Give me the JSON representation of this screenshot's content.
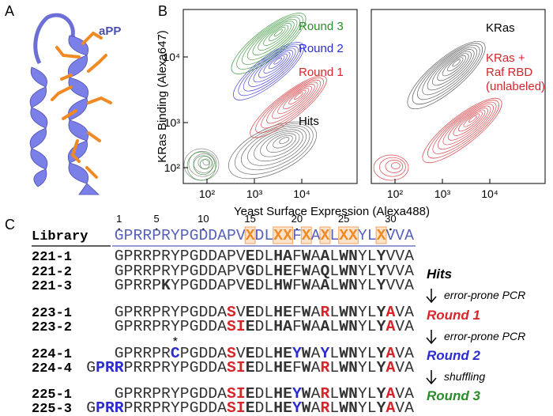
{
  "panel_a": {
    "label": "A",
    "protein": "aPP"
  },
  "panel_b": {
    "label": "B",
    "y_axis_label": "KRas Binding (Alexa647)",
    "x_axis_label": "Yeast Surface Expression (Alexa488)",
    "left_plot": {
      "yticks": [
        "10⁴",
        "10³",
        "10²"
      ],
      "xticks": [
        "10²",
        "10³",
        "10⁴"
      ],
      "annotations": [
        {
          "lines": [
            "Round 3"
          ],
          "color": "#2a8c2a"
        },
        {
          "lines": [
            "Round 2"
          ],
          "color": "#2b2bd0"
        },
        {
          "lines": [
            "Round 1"
          ],
          "color": "#d7262b"
        },
        {
          "lines": [
            "Hits"
          ],
          "color": "#000000"
        }
      ]
    },
    "right_plot": {
      "xticks": [
        "10²",
        "10³",
        "10⁴"
      ],
      "annotations": [
        {
          "lines": [
            "KRas"
          ],
          "color": "#000000"
        },
        {
          "lines": [
            "KRas +",
            "Raf RBD",
            "(unlabeled)"
          ],
          "color": "#d7262b"
        }
      ]
    }
  },
  "panel_c": {
    "label": "C",
    "positions": [
      1,
      5,
      10,
      15,
      20,
      25,
      30
    ],
    "library": {
      "name": "Library",
      "segments": [
        {
          "t": "GPRRPRYPGDDAPV",
          "c": "#5762b8"
        },
        {
          "t": "X",
          "b": true,
          "c": "#f08a24",
          "box": true
        },
        {
          "t": "DL",
          "c": "#5762b8"
        },
        {
          "t": "XX",
          "b": true,
          "c": "#f08a24",
          "box": true
        },
        {
          "t": "F",
          "c": "#5762b8"
        },
        {
          "t": "X",
          "b": true,
          "c": "#f08a24",
          "box": true
        },
        {
          "t": "A",
          "c": "#5762b8"
        },
        {
          "t": "X",
          "b": true,
          "c": "#f08a24",
          "box": true
        },
        {
          "t": "L",
          "c": "#5762b8"
        },
        {
          "t": "XX",
          "b": true,
          "c": "#f08a24",
          "box": true
        },
        {
          "t": "YL",
          "c": "#5762b8"
        },
        {
          "t": "X",
          "b": true,
          "c": "#f08a24",
          "box": true
        },
        {
          "t": "VVA",
          "c": "#5762b8"
        }
      ]
    },
    "rows": [
      {
        "name": "221-1",
        "segments": [
          {
            "t": "GPRRPRYPGDDAPV"
          },
          {
            "t": "E",
            "b": true
          },
          {
            "t": "DL"
          },
          {
            "t": "HA",
            "b": true
          },
          {
            "t": "F"
          },
          {
            "t": "W",
            "b": true
          },
          {
            "t": "A"
          },
          {
            "t": "A",
            "b": true
          },
          {
            "t": "L"
          },
          {
            "t": "WN",
            "b": true
          },
          {
            "t": "YL"
          },
          {
            "t": "Y",
            "b": true
          },
          {
            "t": "VVA"
          }
        ]
      },
      {
        "name": "221-2",
        "segments": [
          {
            "t": "GPRRPRYPGDDAPV"
          },
          {
            "t": "G",
            "b": true
          },
          {
            "t": "DL"
          },
          {
            "t": "HE",
            "b": true
          },
          {
            "t": "F"
          },
          {
            "t": "W",
            "b": true
          },
          {
            "t": "A"
          },
          {
            "t": "Q",
            "b": true
          },
          {
            "t": "L"
          },
          {
            "t": "WN",
            "b": true
          },
          {
            "t": "YL"
          },
          {
            "t": "Y",
            "b": true
          },
          {
            "t": "VVA"
          }
        ]
      },
      {
        "name": "221-3",
        "segments": [
          {
            "t": "GPRRP"
          },
          {
            "t": "K",
            "b": true
          },
          {
            "t": "YPGDDAPV"
          },
          {
            "t": "E",
            "b": true
          },
          {
            "t": "DL"
          },
          {
            "t": "HW",
            "b": true
          },
          {
            "t": "F"
          },
          {
            "t": "W",
            "b": true
          },
          {
            "t": "A"
          },
          {
            "t": "A",
            "b": true
          },
          {
            "t": "L"
          },
          {
            "t": "WN",
            "b": true
          },
          {
            "t": "YL"
          },
          {
            "t": "Y",
            "b": true
          },
          {
            "t": "VVA"
          }
        ]
      },
      {
        "name": "223-1",
        "segments": [
          {
            "t": "GPRRPRYPGDDA"
          },
          {
            "t": "S",
            "b": true,
            "c": "#d7262b"
          },
          {
            "t": "V"
          },
          {
            "t": "E",
            "b": true
          },
          {
            "t": "DL"
          },
          {
            "t": "HE",
            "b": true
          },
          {
            "t": "F"
          },
          {
            "t": "W",
            "b": true
          },
          {
            "t": "A"
          },
          {
            "t": "R",
            "b": true,
            "c": "#d7262b"
          },
          {
            "t": "L"
          },
          {
            "t": "WN",
            "b": true
          },
          {
            "t": "YL"
          },
          {
            "t": "Y",
            "b": true
          },
          {
            "t": "A",
            "b": true,
            "c": "#d7262b"
          },
          {
            "t": "VA"
          }
        ]
      },
      {
        "name": "223-2",
        "segments": [
          {
            "t": "GPRRPRYPGDDA"
          },
          {
            "t": "SI",
            "b": true,
            "c": "#d7262b"
          },
          {
            "t": "E",
            "b": true
          },
          {
            "t": "DL"
          },
          {
            "t": "HA",
            "b": true
          },
          {
            "t": "F"
          },
          {
            "t": "W",
            "b": true
          },
          {
            "t": "A"
          },
          {
            "t": "A",
            "b": true
          },
          {
            "t": "L"
          },
          {
            "t": "WN",
            "b": true
          },
          {
            "t": "YL"
          },
          {
            "t": "Y",
            "b": true
          },
          {
            "t": "A",
            "b": true,
            "c": "#d7262b"
          },
          {
            "t": "VA"
          }
        ]
      },
      {
        "name": "224-1",
        "segments": [
          {
            "t": "GPRRPR"
          },
          {
            "t": "C",
            "b": true,
            "c": "#2b2bd0",
            "mark": "*"
          },
          {
            "t": "PGDDA"
          },
          {
            "t": "S",
            "b": true,
            "c": "#d7262b"
          },
          {
            "t": "V"
          },
          {
            "t": "E",
            "b": true
          },
          {
            "t": "DL"
          },
          {
            "t": "HE",
            "b": true
          },
          {
            "t": "Y",
            "b": true,
            "c": "#2b2bd0"
          },
          {
            "t": "W",
            "b": true
          },
          {
            "t": "A"
          },
          {
            "t": "Y",
            "b": true,
            "c": "#2b2bd0"
          },
          {
            "t": "L"
          },
          {
            "t": "WN",
            "b": true
          },
          {
            "t": "YL"
          },
          {
            "t": "Y",
            "b": true
          },
          {
            "t": "A",
            "b": true,
            "c": "#d7262b"
          },
          {
            "t": "VA"
          }
        ]
      },
      {
        "name": "224-4",
        "segments": [
          {
            "t": "G"
          },
          {
            "t": "PRR",
            "b": true,
            "c": "#2b2bd0"
          },
          {
            "t": "PRRPRYPGDDA"
          },
          {
            "t": "SI",
            "b": true,
            "c": "#d7262b"
          },
          {
            "t": "E",
            "b": true
          },
          {
            "t": "DL"
          },
          {
            "t": "HE",
            "b": true
          },
          {
            "t": "F"
          },
          {
            "t": "W",
            "b": true
          },
          {
            "t": "A"
          },
          {
            "t": "R",
            "b": true,
            "c": "#d7262b"
          },
          {
            "t": "L"
          },
          {
            "t": "WN",
            "b": true
          },
          {
            "t": "YL"
          },
          {
            "t": "Y",
            "b": true
          },
          {
            "t": "A",
            "b": true,
            "c": "#d7262b"
          },
          {
            "t": "VA"
          }
        ]
      },
      {
        "name": "225-1",
        "segments": [
          {
            "t": "GPRRPRYPGDDA"
          },
          {
            "t": "SI",
            "b": true,
            "c": "#d7262b"
          },
          {
            "t": "E",
            "b": true
          },
          {
            "t": "DL"
          },
          {
            "t": "HE",
            "b": true
          },
          {
            "t": "Y",
            "b": true,
            "c": "#2b2bd0"
          },
          {
            "t": "W",
            "b": true
          },
          {
            "t": "A"
          },
          {
            "t": "R",
            "b": true,
            "c": "#d7262b"
          },
          {
            "t": "L"
          },
          {
            "t": "WN",
            "b": true
          },
          {
            "t": "YL"
          },
          {
            "t": "Y",
            "b": true
          },
          {
            "t": "A",
            "b": true,
            "c": "#d7262b"
          },
          {
            "t": "VA"
          }
        ]
      },
      {
        "name": "225-3",
        "segments": [
          {
            "t": "G"
          },
          {
            "t": "PRR",
            "b": true,
            "c": "#2b2bd0"
          },
          {
            "t": "PRRPRYPGDDA"
          },
          {
            "t": "SI",
            "b": true,
            "c": "#d7262b"
          },
          {
            "t": "E",
            "b": true
          },
          {
            "t": "DL"
          },
          {
            "t": "HE",
            "b": true
          },
          {
            "t": "Y",
            "b": true,
            "c": "#2b2bd0"
          },
          {
            "t": "W",
            "b": true
          },
          {
            "t": "A"
          },
          {
            "t": "R",
            "b": true,
            "c": "#d7262b"
          },
          {
            "t": "L"
          },
          {
            "t": "WN",
            "b": true
          },
          {
            "t": "YL"
          },
          {
            "t": "Y",
            "b": true
          },
          {
            "t": "A",
            "b": true,
            "c": "#d7262b"
          },
          {
            "t": "VA"
          }
        ]
      }
    ],
    "stages": [
      {
        "text": "Hits",
        "color": "#000000"
      },
      {
        "text": "Round 1",
        "color": "#d7262b"
      },
      {
        "text": "Round 2",
        "color": "#2b2bd0"
      },
      {
        "text": "Round 3",
        "color": "#2a8c2a"
      }
    ],
    "methods": [
      "error-prone PCR",
      "error-prone PCR",
      "shuffling"
    ]
  }
}
